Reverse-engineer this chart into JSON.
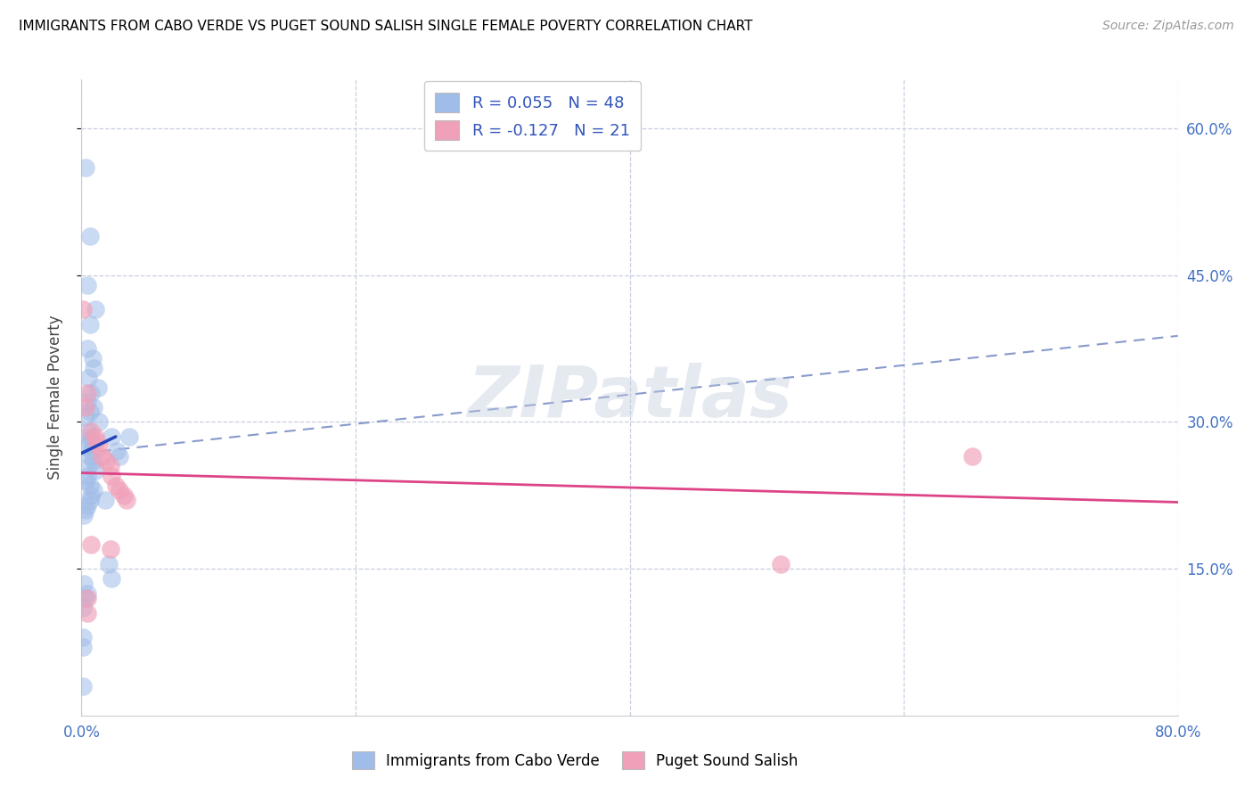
{
  "title": "IMMIGRANTS FROM CABO VERDE VS PUGET SOUND SALISH SINGLE FEMALE POVERTY CORRELATION CHART",
  "source": "Source: ZipAtlas.com",
  "ylabel": "Single Female Poverty",
  "xlim": [
    0.0,
    0.8
  ],
  "ylim": [
    0.0,
    0.65
  ],
  "blue_color": "#a0bce8",
  "pink_color": "#f0a0b8",
  "blue_line_color": "#2244bb",
  "pink_line_color": "#dd4488",
  "dashed_line_color": "#8899cc",
  "watermark_text": "ZIPatlas",
  "cabo_verde_x": [
    0.003,
    0.006,
    0.004,
    0.01,
    0.006,
    0.004,
    0.008,
    0.009,
    0.005,
    0.012,
    0.007,
    0.004,
    0.009,
    0.006,
    0.003,
    0.004,
    0.007,
    0.006,
    0.004,
    0.007,
    0.006,
    0.009,
    0.005,
    0.01,
    0.004,
    0.003,
    0.006,
    0.009,
    0.007,
    0.006,
    0.004,
    0.003,
    0.002,
    0.013,
    0.022,
    0.026,
    0.028,
    0.035,
    0.017,
    0.02,
    0.022,
    0.002,
    0.004,
    0.003,
    0.001,
    0.001,
    0.001,
    0.001
  ],
  "cabo_verde_y": [
    0.56,
    0.49,
    0.44,
    0.415,
    0.4,
    0.375,
    0.365,
    0.355,
    0.345,
    0.335,
    0.33,
    0.32,
    0.315,
    0.31,
    0.305,
    0.29,
    0.285,
    0.28,
    0.275,
    0.27,
    0.265,
    0.26,
    0.255,
    0.25,
    0.245,
    0.24,
    0.235,
    0.23,
    0.225,
    0.22,
    0.215,
    0.21,
    0.205,
    0.3,
    0.285,
    0.27,
    0.265,
    0.285,
    0.22,
    0.155,
    0.14,
    0.135,
    0.125,
    0.12,
    0.11,
    0.08,
    0.07,
    0.03
  ],
  "puget_x": [
    0.001,
    0.004,
    0.003,
    0.007,
    0.01,
    0.011,
    0.013,
    0.015,
    0.018,
    0.021,
    0.022,
    0.025,
    0.028,
    0.031,
    0.033,
    0.007,
    0.021,
    0.65,
    0.51,
    0.004,
    0.004
  ],
  "puget_y": [
    0.415,
    0.33,
    0.315,
    0.29,
    0.285,
    0.28,
    0.275,
    0.265,
    0.26,
    0.255,
    0.245,
    0.235,
    0.23,
    0.225,
    0.22,
    0.175,
    0.17,
    0.265,
    0.155,
    0.12,
    0.105
  ],
  "blue_line_x": [
    0.0,
    0.025
  ],
  "blue_line_y": [
    0.268,
    0.285
  ],
  "pink_line_x": [
    0.0,
    0.8
  ],
  "pink_line_y": [
    0.248,
    0.218
  ],
  "dashed_line_x": [
    0.0,
    0.8
  ],
  "dashed_line_y": [
    0.268,
    0.388
  ]
}
